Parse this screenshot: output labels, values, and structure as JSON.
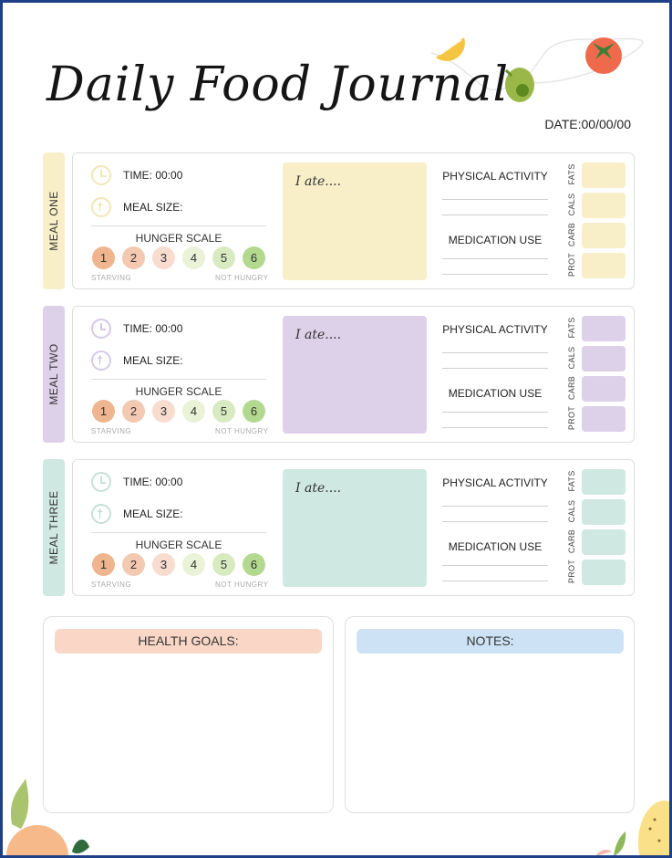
{
  "title": "Daily Food Journal",
  "date_label": "DATE:00/00/00",
  "meals": [
    {
      "tab_label": "MEAL ONE",
      "time_label": "TIME: 00:00",
      "meal_size_label": "MEAL SIZE:",
      "hunger_scale_label": "HUNGER SCALE",
      "scale": [
        "1",
        "2",
        "3",
        "4",
        "5",
        "6"
      ],
      "starving_label": "STARVING",
      "not_hungry_label": "NOT HUNGRY",
      "ate_label": "I ate....",
      "physical_activity_label": "PHYSICAL ACTIVITY",
      "medication_use_label": "MEDICATION USE",
      "macros": [
        "FATS",
        "CALS",
        "CARB",
        "PROT"
      ]
    },
    {
      "tab_label": "MEAL TWO",
      "time_label": "TIME: 00:00",
      "meal_size_label": "MEAL SIZE:",
      "hunger_scale_label": "HUNGER SCALE",
      "scale": [
        "1",
        "2",
        "3",
        "4",
        "5",
        "6"
      ],
      "starving_label": "STARVING",
      "not_hungry_label": "NOT HUNGRY",
      "ate_label": "I ate....",
      "physical_activity_label": "PHYSICAL ACTIVITY",
      "medication_use_label": "MEDICATION USE",
      "macros": [
        "FATS",
        "CALS",
        "CARB",
        "PROT"
      ]
    },
    {
      "tab_label": "MEAL THREE",
      "time_label": "TIME: 00:00",
      "meal_size_label": "MEAL SIZE:",
      "hunger_scale_label": "HUNGER SCALE",
      "scale": [
        "1",
        "2",
        "3",
        "4",
        "5",
        "6"
      ],
      "starving_label": "STARVING",
      "not_hungry_label": "NOT HUNGRY",
      "ate_label": "I ate....",
      "physical_activity_label": "PHYSICAL ACTIVITY",
      "medication_use_label": "MEDICATION USE",
      "macros": [
        "FATS",
        "CALS",
        "CARB",
        "PROT"
      ]
    }
  ],
  "health_goals_label": "HEALTH GOALS:",
  "notes_label": "NOTES:",
  "colors": {
    "meal_one": "#f8efc9",
    "meal_two": "#ddd0e9",
    "meal_three": "#cfe8e1",
    "scale": [
      "#eeb58f",
      "#f3c9b2",
      "#f7dccf",
      "#eaf2d7",
      "#d8eac0",
      "#b3d98f"
    ],
    "health_goals": "#f9d6c6",
    "notes": "#cde3f5",
    "border": "#1f3f86"
  },
  "icons": [
    "clock-icon",
    "fork-knife-icon",
    "lemon-icon",
    "avocado-icon",
    "tomato-icon",
    "peach-icon",
    "leaf-icon",
    "pear-icon"
  ]
}
